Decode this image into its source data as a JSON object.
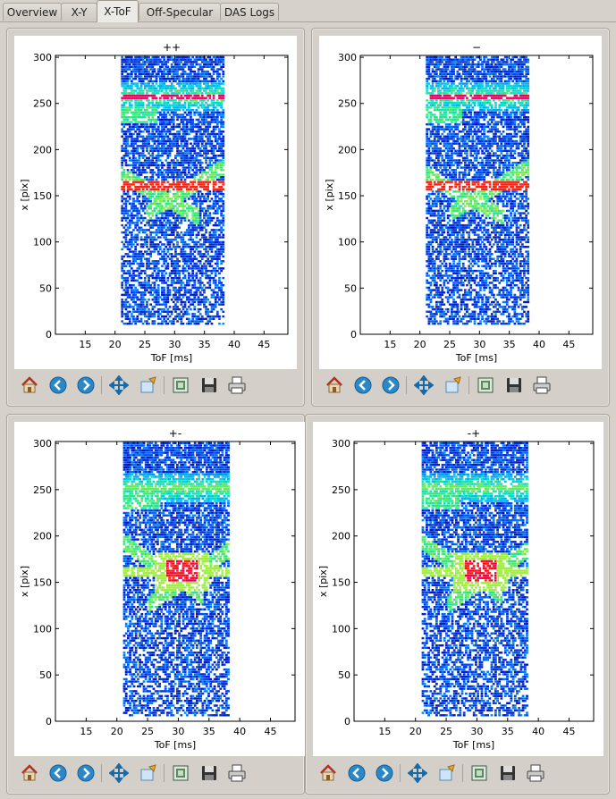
{
  "tabs": [
    {
      "label": "Overview",
      "active": false
    },
    {
      "label": "X-Y",
      "active": false
    },
    {
      "label": "X-ToF",
      "active": true
    },
    {
      "label": "Off-Specular",
      "active": false
    },
    {
      "label": "DAS Logs",
      "active": false
    }
  ],
  "toolbar_icons": [
    "home-icon",
    "back-arrow-icon",
    "forward-arrow-icon",
    "pan-icon",
    "zoom-rect-icon",
    "subplots-icon",
    "save-icon",
    "print-icon"
  ],
  "colors": {
    "accent": "#2a6fa8",
    "panel_bg": "#d4d0c9",
    "plot_bg": "#ffffff"
  },
  "chart_data": [
    {
      "type": "heatmap",
      "title": "++",
      "xlabel": "ToF [ms]",
      "ylabel": "x [pix]",
      "xlim": [
        10,
        49
      ],
      "ylim": [
        0,
        302
      ],
      "xticks": [
        15,
        20,
        25,
        30,
        35,
        40,
        45
      ],
      "yticks": [
        0,
        50,
        100,
        150,
        200,
        250,
        300
      ],
      "data_extent": {
        "tof": [
          21,
          38
        ],
        "x": [
          10,
          300
        ]
      },
      "bands": [
        {
          "x_center": 256,
          "width": 26,
          "peak_tof": [
            22,
            37
          ],
          "max_intensity": "high"
        },
        {
          "x_center": 160,
          "width": 55,
          "peak_tof": [
            22,
            37
          ],
          "max_intensity": "high"
        }
      ]
    },
    {
      "type": "heatmap",
      "title": "−",
      "xlabel": "ToF [ms]",
      "ylabel": "x [pix]",
      "xlim": [
        10,
        49
      ],
      "ylim": [
        0,
        302
      ],
      "xticks": [
        15,
        20,
        25,
        30,
        35,
        40,
        45
      ],
      "yticks": [
        0,
        50,
        100,
        150,
        200,
        250,
        300
      ],
      "data_extent": {
        "tof": [
          21,
          38
        ],
        "x": [
          10,
          300
        ]
      },
      "bands": [
        {
          "x_center": 256,
          "width": 26,
          "peak_tof": [
            22,
            37
          ],
          "max_intensity": "high"
        },
        {
          "x_center": 160,
          "width": 55,
          "peak_tof": [
            22,
            37
          ],
          "max_intensity": "high"
        }
      ]
    },
    {
      "type": "heatmap",
      "title": "+-",
      "xlabel": "ToF [ms]",
      "ylabel": "x [pix]",
      "xlim": [
        10,
        49
      ],
      "ylim": [
        0,
        302
      ],
      "xticks": [
        15,
        20,
        25,
        30,
        35,
        40,
        45
      ],
      "yticks": [
        0,
        50,
        100,
        150,
        200,
        250,
        300
      ],
      "data_extent": {
        "tof": [
          21,
          38
        ],
        "x": [
          5,
          300
        ]
      },
      "bands": [
        {
          "x_center": 250,
          "width": 30,
          "peak_tof": [
            22,
            38
          ],
          "max_intensity": "medium"
        },
        {
          "x_center": 160,
          "width": 60,
          "peak_tof": [
            22,
            38
          ],
          "max_intensity": "very-high"
        }
      ]
    },
    {
      "type": "heatmap",
      "title": "-+",
      "xlabel": "ToF [ms]",
      "ylabel": "x [pix]",
      "xlim": [
        10,
        49
      ],
      "ylim": [
        0,
        302
      ],
      "xticks": [
        15,
        20,
        25,
        30,
        35,
        40,
        45
      ],
      "yticks": [
        0,
        50,
        100,
        150,
        200,
        250,
        300
      ],
      "data_extent": {
        "tof": [
          21,
          38
        ],
        "x": [
          5,
          300
        ]
      },
      "bands": [
        {
          "x_center": 250,
          "width": 30,
          "peak_tof": [
            22,
            38
          ],
          "max_intensity": "medium"
        },
        {
          "x_center": 160,
          "width": 60,
          "peak_tof": [
            22,
            38
          ],
          "max_intensity": "very-high"
        }
      ]
    }
  ]
}
